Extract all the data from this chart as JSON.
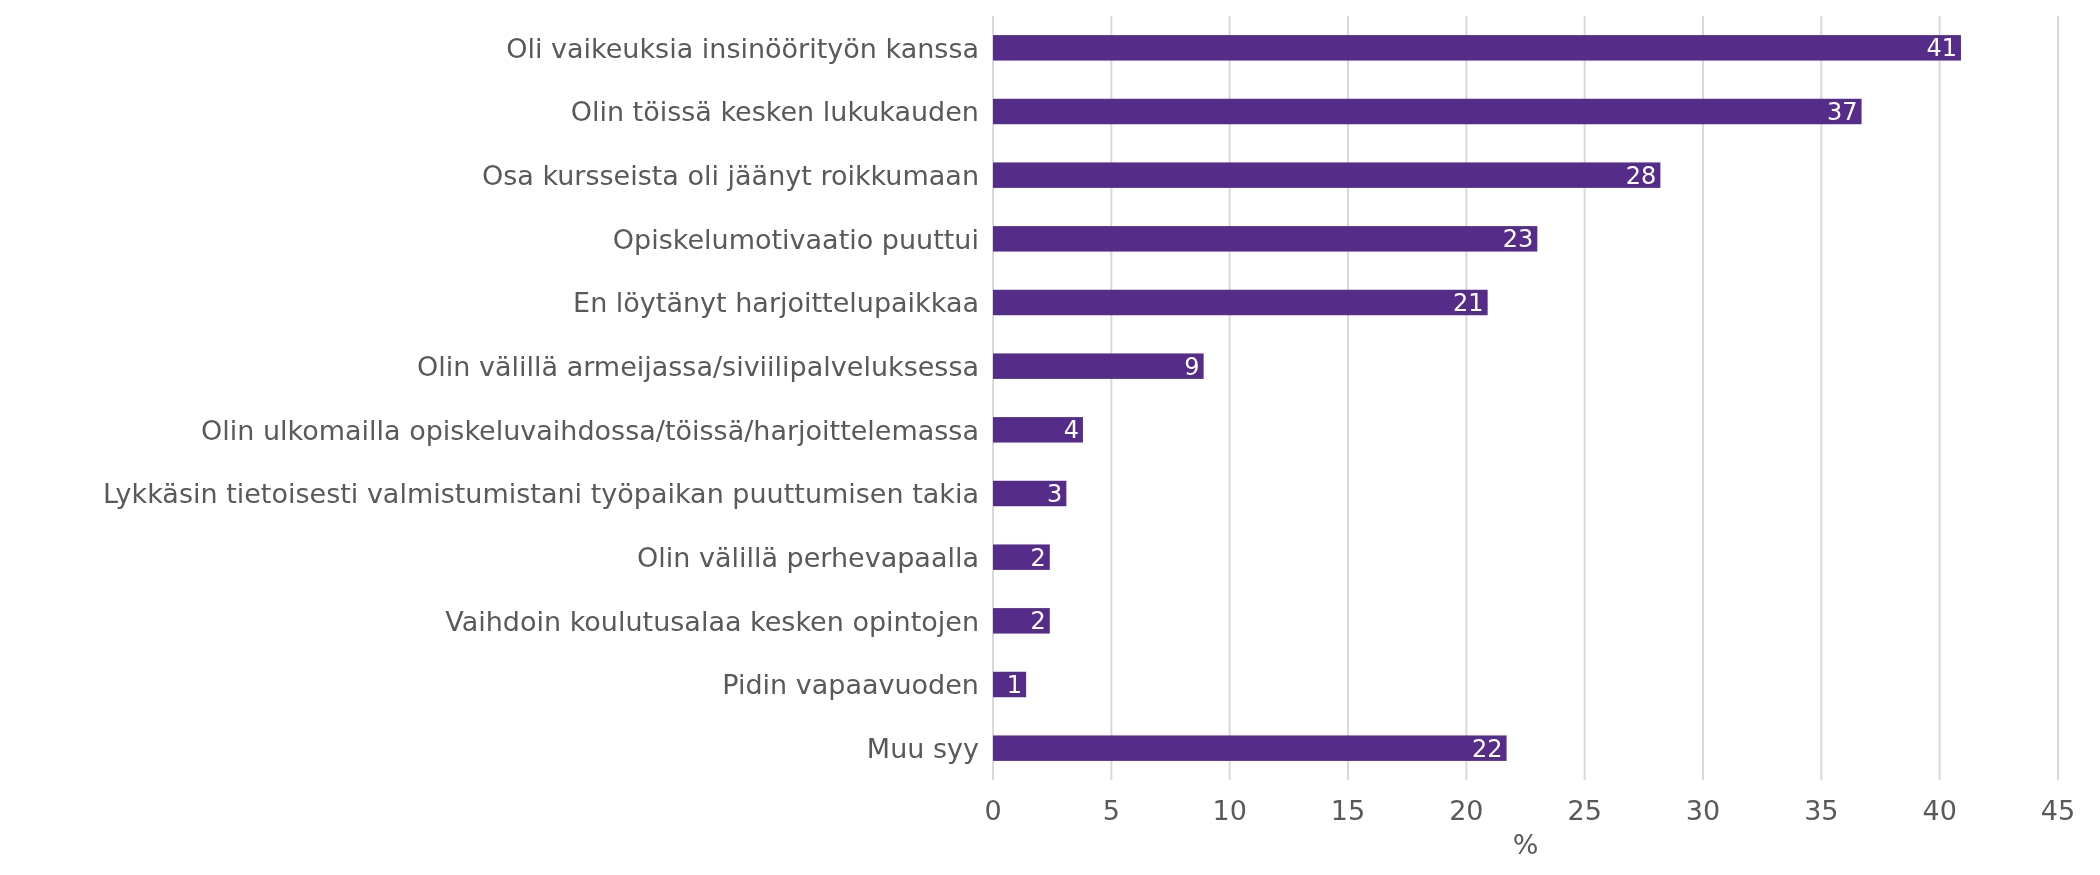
{
  "chart_data": {
    "type": "bar",
    "orientation": "horizontal",
    "xlabel": "%",
    "categories": [
      "Oli vaikeuksia insinöörityön kanssa",
      "Olin töissä kesken lukukauden",
      "Osa kursseista oli jäänyt roikkumaan",
      "Opiskelumotivaatio puuttui",
      "En löytänyt harjoittelupaikkaa",
      "Olin välillä armeijassa/siviilipalveluksessa",
      "Olin ulkomailla opiskeluvaihdossa/töissä/harjoittelemassa",
      "Lykkäsin tietoisesti valmistumistani työpaikan puuttumisen takia",
      "Olin välillä perhevapaalla",
      "Vaihdoin koulutusalaa kesken opintojen",
      "Pidin vapaavuoden",
      "Muu syy"
    ],
    "values": [
      40.9,
      36.7,
      28.2,
      23.0,
      20.9,
      8.9,
      3.8,
      3.1,
      2.4,
      2.4,
      1.4,
      21.7
    ],
    "value_labels": [
      "41",
      "37",
      "28",
      "23",
      "21",
      "9",
      "4",
      "3",
      "2",
      "2",
      "1",
      "22"
    ],
    "color": "#552c8a",
    "xlim": [
      0,
      45
    ],
    "xticks": [
      0,
      5,
      10,
      15,
      20,
      25,
      30,
      35,
      40,
      45
    ],
    "grid": "x"
  }
}
